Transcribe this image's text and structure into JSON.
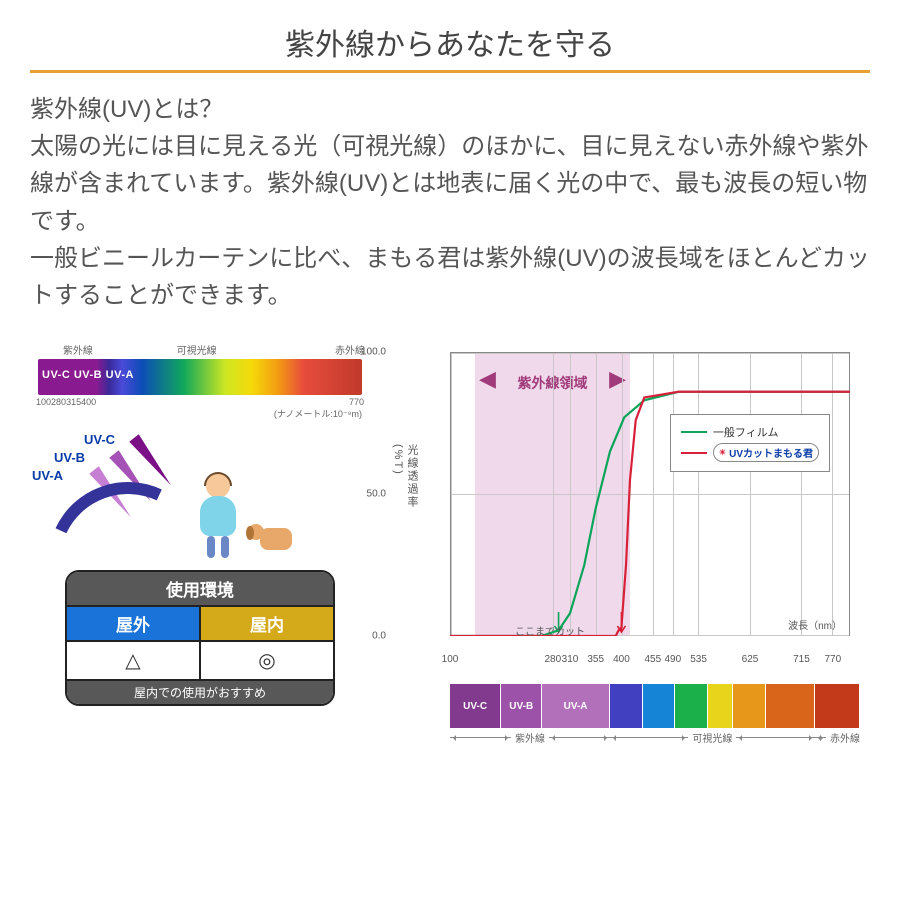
{
  "title": "紫外線からあなたを守る",
  "title_underline_color": "#e8a034",
  "body_text": "紫外線(UV)とは？\n太陽の光には目に見える光（可視光線）のほかに、目に見えない赤外線や紫外線が含まれています。紫外線(UV)とは地表に届く光の中で、最も波長の短い物です。\n一般ビニールカーテンに比べ、まもる君は紫外線(UV)の波長域をほとんどカットすることができます。",
  "spectrum": {
    "top_labels": [
      "紫外線",
      "可視光線",
      "赤外線"
    ],
    "band_text": "UV-C  UV-B  UV-A",
    "ticks": [
      "100",
      "280",
      "315",
      "400",
      "770"
    ],
    "unit": "(ナノメートル:10⁻⁹m)"
  },
  "rays": {
    "c": "UV-C",
    "b": "UV-B",
    "a": "UV-A",
    "colors": {
      "c": "#7a0f86",
      "b": "#a651b6",
      "a": "#c77fd4"
    }
  },
  "env_table": {
    "header": "使用環境",
    "outdoor": "屋外",
    "indoor": "屋内",
    "outdoor_symbol": "△",
    "indoor_symbol": "◎",
    "note": "屋内での使用がおすすめ",
    "outdoor_bg": "#1a73d8",
    "indoor_bg": "#d4a91a"
  },
  "chart": {
    "type": "line",
    "ylabel": "光線透過率\n(%T)",
    "ylim": [
      0,
      100
    ],
    "yticks": [
      0.0,
      50.0,
      100.0
    ],
    "xlabel": "波長（nm）",
    "xlim": [
      100,
      800
    ],
    "xticks": [
      100,
      280,
      310,
      355,
      400,
      455,
      490,
      535,
      625,
      715,
      770
    ],
    "uv_region_label": "紫外線領域",
    "uv_region_range": [
      280,
      400
    ],
    "cut_label": "ここまでカット",
    "grid_color": "#c8c8c8",
    "background_color": "#ffffff",
    "lines": {
      "general": {
        "label": "一般フィルム",
        "color": "#0ba55a",
        "points": [
          [
            100,
            0
          ],
          [
            260,
            0
          ],
          [
            290,
            2
          ],
          [
            310,
            8
          ],
          [
            335,
            25
          ],
          [
            355,
            45
          ],
          [
            380,
            65
          ],
          [
            405,
            77
          ],
          [
            440,
            83
          ],
          [
            500,
            86
          ],
          [
            800,
            86
          ]
        ]
      },
      "mamoru": {
        "label": "UVカットまもる君",
        "color": "#d8203a",
        "points": [
          [
            100,
            0
          ],
          [
            390,
            0
          ],
          [
            395,
            2
          ],
          [
            400,
            3
          ],
          [
            408,
            25
          ],
          [
            415,
            55
          ],
          [
            425,
            76
          ],
          [
            440,
            84
          ],
          [
            500,
            86
          ],
          [
            800,
            86
          ]
        ]
      }
    },
    "legend": {
      "general": "一般フィルム",
      "mamoru": "UVカットまもる君"
    }
  },
  "bandbar": {
    "segments": [
      {
        "label": "UV-C",
        "w": 12.5,
        "color": "#823a8e"
      },
      {
        "label": "UV-B",
        "w": 10,
        "color": "#9c52a8"
      },
      {
        "label": "UV-A",
        "w": 16.5,
        "color": "#b270bb"
      },
      {
        "label": "",
        "w": 8,
        "color": "#4040c0"
      },
      {
        "label": "",
        "w": 8,
        "color": "#1684d6"
      },
      {
        "label": "",
        "w": 8,
        "color": "#1bb04a"
      },
      {
        "label": "",
        "w": 6,
        "color": "#e8d41a"
      },
      {
        "label": "",
        "w": 8,
        "color": "#e7981a"
      },
      {
        "label": "",
        "w": 12,
        "color": "#d9651a"
      },
      {
        "label": "",
        "w": 11,
        "color": "#c23a1a"
      }
    ],
    "regions": {
      "uv": "紫外線",
      "visible": "可視光線",
      "ir": "赤外線"
    }
  }
}
